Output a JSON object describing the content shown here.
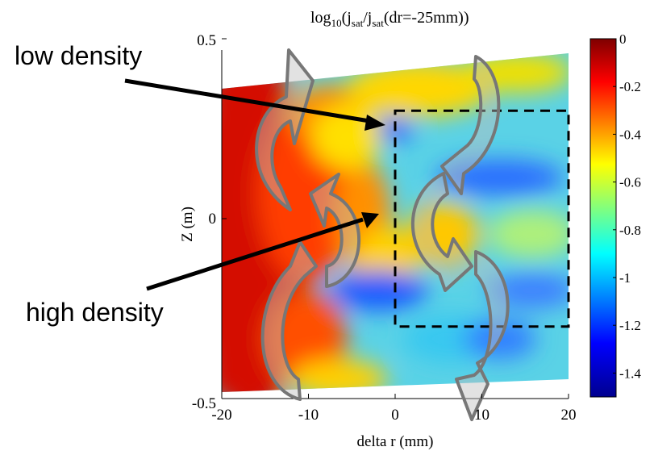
{
  "chart_data": {
    "type": "heatmap",
    "title_main": "log",
    "title_sub": "10",
    "title_paren_open": "(j",
    "title_sub2": "sat",
    "title_slash": "/j",
    "title_sub3": "sat",
    "title_rest": "(dr=-25mm))",
    "xlabel": "delta r (mm)",
    "ylabel": "Z (m)",
    "xlim": [
      -20,
      20
    ],
    "ylim": [
      -0.5,
      0.5
    ],
    "x_ticks": [
      {
        "value": -20,
        "label": "-20"
      },
      {
        "value": -10,
        "label": "-10"
      },
      {
        "value": 0,
        "label": "0"
      },
      {
        "value": 10,
        "label": "10"
      },
      {
        "value": 20,
        "label": "20"
      }
    ],
    "y_ticks": [
      {
        "value": 0.5,
        "label": "0.5"
      },
      {
        "value": 0,
        "label": "0"
      },
      {
        "value": -0.5,
        "label": "-0.5"
      }
    ],
    "colorbar": {
      "range": [
        -1.5,
        0
      ],
      "colormap": "jet",
      "ticks": [
        {
          "value": 0,
          "label": "0"
        },
        {
          "value": -0.2,
          "label": "-0.2"
        },
        {
          "value": -0.4,
          "label": "-0.4"
        },
        {
          "value": -0.6,
          "label": "-0.6"
        },
        {
          "value": -0.8,
          "label": "-0.8"
        },
        {
          "value": -1,
          "label": "-1"
        },
        {
          "value": -1.2,
          "label": "-1.2"
        },
        {
          "value": -1.4,
          "label": "-1.4"
        }
      ]
    },
    "dashed_box": {
      "x": [
        0,
        20
      ],
      "z": [
        -0.3,
        0.3
      ]
    },
    "annotations": [
      {
        "text": "low density",
        "target": {
          "x": -1,
          "z": 0.28
        }
      },
      {
        "text": "high density",
        "target": {
          "x": -3,
          "z": 0.02
        }
      }
    ],
    "flow_arrows": "grey curved arrows indicating circulating flow (left and right pairs)"
  }
}
